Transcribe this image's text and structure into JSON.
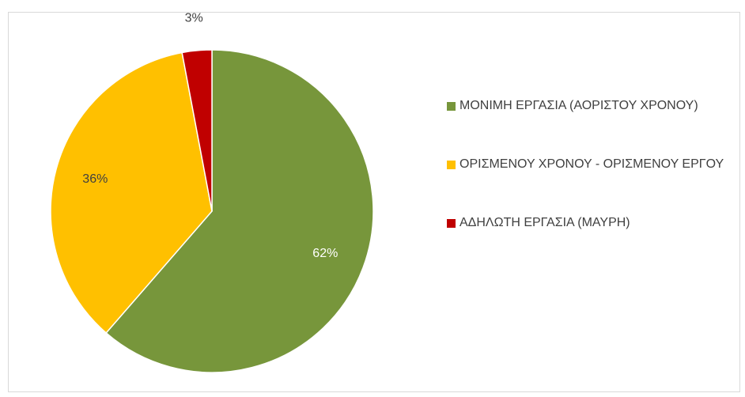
{
  "chart_data": {
    "type": "pie",
    "categories": [
      "ΜΟΝΙΜΗ ΕΡΓΑΣΙΑ (ΑΟΡΙΣΤΟΥ ΧΡΟΝΟΥ)",
      "ΟΡΙΣΜΕΝΟΥ ΧΡΟΝΟΥ - ΟΡΙΣΜΕΝΟΥ ΕΡΓΟΥ",
      "ΑΔΗΛΩΤΗ ΕΡΓΑΣΙΑ (ΜΑΥΡΗ)"
    ],
    "values": [
      62,
      36,
      3
    ],
    "value_labels": [
      "62%",
      "36%",
      "3%"
    ],
    "colors": [
      "#77963b",
      "#ffc000",
      "#c00000"
    ],
    "label_colors": [
      "#ffffff",
      "#404040",
      "#404040"
    ],
    "legend": "right"
  }
}
